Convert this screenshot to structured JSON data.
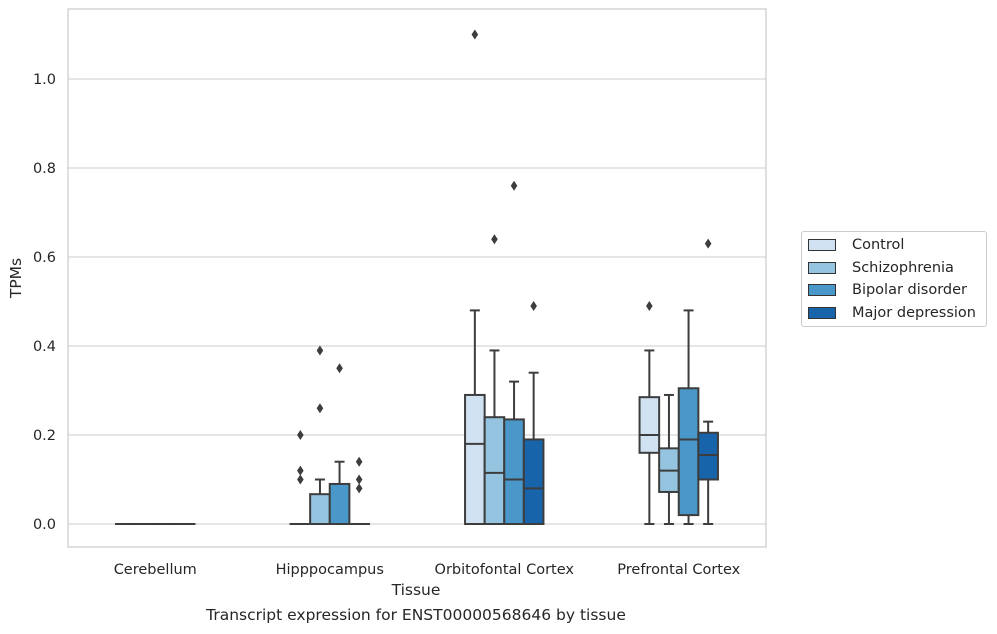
{
  "chart_data": {
    "type": "boxplot",
    "xlabel": "Tissue",
    "ylabel": "TPMs",
    "caption": "Transcript expression for ENST00000568646 by tissue",
    "ylim": [
      -0.05,
      1.15
    ],
    "yticks": [
      0.0,
      0.2,
      0.4,
      0.6,
      0.8,
      1.0
    ],
    "ytick_labels": [
      "0.0",
      "0.2",
      "0.4",
      "0.6",
      "0.8",
      "1.0"
    ],
    "grid": "horizontal",
    "legend_position": "right",
    "categories": [
      "Cerebellum",
      "Hipppocampus",
      "Orbitofontal Cortex",
      "Prefrontal Cortex"
    ],
    "series": [
      {
        "name": "Control",
        "color": "#d0e1f2",
        "boxes": [
          {
            "q1": 0,
            "median": 0,
            "q3": 0,
            "whislo": 0,
            "whishi": 0,
            "fliers": []
          },
          {
            "q1": 0,
            "median": 0,
            "q3": 0,
            "whislo": 0,
            "whishi": 0,
            "fliers": [
              0.2,
              0.12,
              0.1
            ]
          },
          {
            "q1": 0,
            "median": 0.18,
            "q3": 0.29,
            "whislo": 0,
            "whishi": 0.48,
            "fliers": [
              1.1
            ]
          },
          {
            "q1": 0.16,
            "median": 0.2,
            "q3": 0.285,
            "whislo": 0,
            "whishi": 0.39,
            "fliers": [
              0.49
            ]
          }
        ]
      },
      {
        "name": "Schizophrenia",
        "color": "#94c4df",
        "boxes": [
          {
            "q1": 0,
            "median": 0,
            "q3": 0,
            "whislo": 0,
            "whishi": 0,
            "fliers": []
          },
          {
            "q1": 0,
            "median": 0,
            "q3": 0.067,
            "whislo": 0,
            "whishi": 0.1,
            "fliers": [
              0.39,
              0.26
            ]
          },
          {
            "q1": 0,
            "median": 0.115,
            "q3": 0.24,
            "whislo": 0,
            "whishi": 0.39,
            "fliers": [
              0.64
            ]
          },
          {
            "q1": 0.072,
            "median": 0.12,
            "q3": 0.17,
            "whislo": 0,
            "whishi": 0.29,
            "fliers": []
          }
        ]
      },
      {
        "name": "Bipolar disorder",
        "color": "#4a98c9",
        "boxes": [
          {
            "q1": 0,
            "median": 0,
            "q3": 0,
            "whislo": 0,
            "whishi": 0,
            "fliers": []
          },
          {
            "q1": 0,
            "median": 0,
            "q3": 0.09,
            "whislo": 0,
            "whishi": 0.14,
            "fliers": [
              0.35
            ]
          },
          {
            "q1": 0,
            "median": 0.1,
            "q3": 0.235,
            "whislo": 0,
            "whishi": 0.32,
            "fliers": [
              0.76
            ]
          },
          {
            "q1": 0.02,
            "median": 0.19,
            "q3": 0.305,
            "whislo": 0,
            "whishi": 0.48,
            "fliers": []
          }
        ]
      },
      {
        "name": "Major depression",
        "color": "#1764ab",
        "boxes": [
          {
            "q1": 0,
            "median": 0,
            "q3": 0,
            "whislo": 0,
            "whishi": 0,
            "fliers": []
          },
          {
            "q1": 0,
            "median": 0,
            "q3": 0,
            "whislo": 0,
            "whishi": 0,
            "fliers": [
              0.14,
              0.1,
              0.08
            ]
          },
          {
            "q1": 0,
            "median": 0.08,
            "q3": 0.19,
            "whislo": 0,
            "whishi": 0.34,
            "fliers": [
              0.49
            ]
          },
          {
            "q1": 0.1,
            "median": 0.155,
            "q3": 0.205,
            "whislo": 0,
            "whishi": 0.23,
            "fliers": [
              0.63
            ]
          }
        ]
      }
    ]
  }
}
